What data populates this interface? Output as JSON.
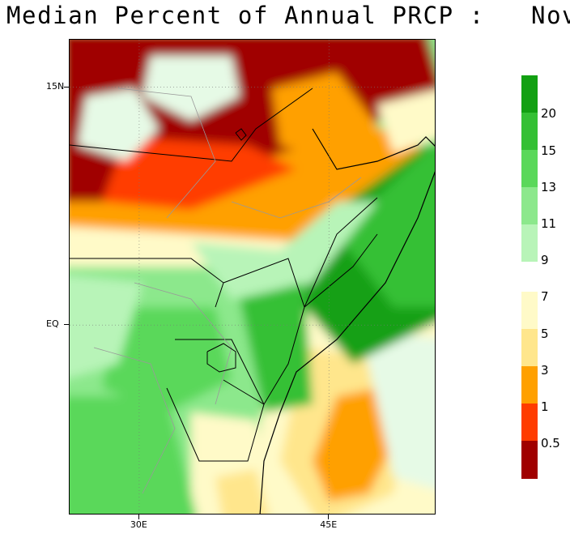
{
  "title": "Median Percent of Annual PRCP :   Nov",
  "axes": {
    "lat_labels": [
      {
        "label": "15N",
        "value": 15
      },
      {
        "label": "EQ",
        "value": 0
      }
    ],
    "lon_labels": [
      {
        "label": "30E",
        "value": 30
      },
      {
        "label": "45E",
        "value": 45
      }
    ],
    "lon_range": [
      24.5,
      53.5
    ],
    "lat_range": [
      -12,
      18
    ]
  },
  "legend": {
    "colors": {
      "c20plus": "#12a012",
      "c15": "#34c034",
      "c13": "#5ad85a",
      "c11": "#8ce88c",
      "c9": "#b8f4b8",
      "c7": "#e6fae6",
      "gap": "#ffffff",
      "c5": "#fffac8",
      "c3": "#ffe68c",
      "c1": "#ffa000",
      "c05": "#ff3c00",
      "c0": "#a00000"
    },
    "labels": [
      "20",
      "15",
      "13",
      "11",
      "9",
      "7",
      "5",
      "3",
      "1",
      "0.5"
    ]
  }
}
